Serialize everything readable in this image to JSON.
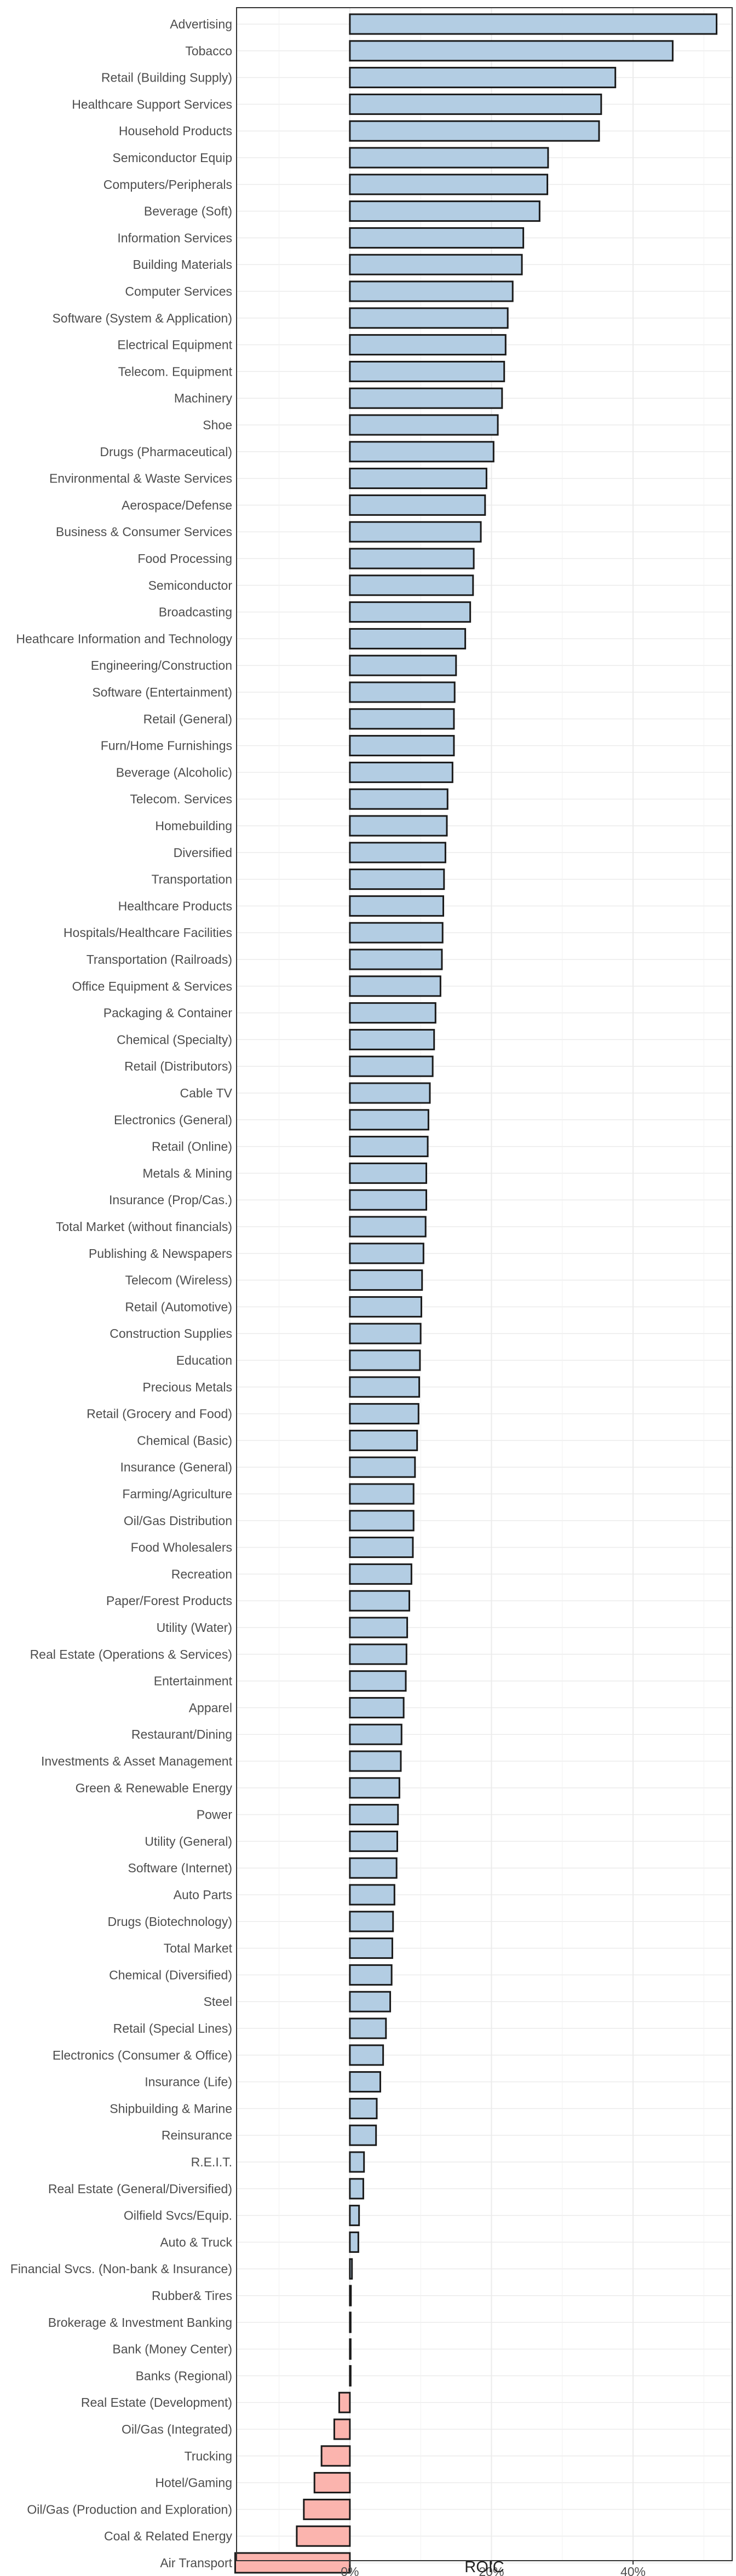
{
  "chart_data": {
    "type": "bar",
    "orientation": "horizontal",
    "xlabel": "ROIC",
    "ylabel": "",
    "xlim": [
      -0.16,
      0.54
    ],
    "x_ticks": [
      0,
      0.2,
      0.4
    ],
    "x_tick_labels": [
      "0%",
      "20%",
      "40%"
    ],
    "grid": true,
    "legend": "none",
    "colors": {
      "positive": "#b3cde3",
      "negative": "#fbb4ae",
      "outline": "#1a1a1a",
      "grid": "#ebebeb",
      "panel_border": "#333333"
    },
    "categories": [
      "Advertising",
      "Tobacco",
      "Retail (Building Supply)",
      "Healthcare Support Services",
      "Household Products",
      "Semiconductor Equip",
      "Computers/Peripherals",
      "Beverage (Soft)",
      "Information Services",
      "Building Materials",
      "Computer Services",
      "Software (System & Application)",
      "Electrical Equipment",
      "Telecom. Equipment",
      "Machinery",
      "Shoe",
      "Drugs (Pharmaceutical)",
      "Environmental & Waste Services",
      "Aerospace/Defense",
      "Business & Consumer Services",
      "Food Processing",
      "Semiconductor",
      "Broadcasting",
      "Heathcare Information and Technology",
      "Engineering/Construction",
      "Software (Entertainment)",
      "Retail (General)",
      "Furn/Home Furnishings",
      "Beverage (Alcoholic)",
      "Telecom. Services",
      "Homebuilding",
      "Diversified",
      "Transportation",
      "Healthcare Products",
      "Hospitals/Healthcare Facilities",
      "Transportation (Railroads)",
      "Office Equipment & Services",
      "Packaging & Container",
      "Chemical (Specialty)",
      "Retail (Distributors)",
      "Cable TV",
      "Electronics (General)",
      "Retail (Online)",
      "Metals & Mining",
      "Insurance (Prop/Cas.)",
      "Total Market (without financials)",
      "Publishing & Newspapers",
      "Telecom (Wireless)",
      "Retail (Automotive)",
      "Construction Supplies",
      "Education",
      "Precious Metals",
      "Retail (Grocery and Food)",
      "Chemical (Basic)",
      "Insurance (General)",
      "Farming/Agriculture",
      "Oil/Gas Distribution",
      "Food Wholesalers",
      "Recreation",
      "Paper/Forest Products",
      "Utility (Water)",
      "Real Estate (Operations & Services)",
      "Entertainment",
      "Apparel",
      "Restaurant/Dining",
      "Investments & Asset Management",
      "Green & Renewable Energy",
      "Power",
      "Utility (General)",
      "Software (Internet)",
      "Auto Parts",
      "Drugs (Biotechnology)",
      "Total Market",
      "Chemical (Diversified)",
      "Steel",
      "Retail (Special Lines)",
      "Electronics (Consumer & Office)",
      "Insurance (Life)",
      "Shipbuilding & Marine",
      "Reinsurance",
      "R.E.I.T.",
      "Real Estate (General/Diversified)",
      "Oilfield Svcs/Equip.",
      "Auto & Truck",
      "Financial Svcs. (Non-bank & Insurance)",
      "Rubber& Tires",
      "Brokerage & Investment Banking",
      "Bank (Money Center)",
      "Banks (Regional)",
      "Real Estate (Development)",
      "Oil/Gas (Integrated)",
      "Trucking",
      "Hotel/Gaming",
      "Oil/Gas (Production and Exploration)",
      "Coal & Related Energy",
      "Air Transport"
    ],
    "values": [
      0.518,
      0.456,
      0.375,
      0.355,
      0.352,
      0.28,
      0.279,
      0.268,
      0.245,
      0.243,
      0.23,
      0.223,
      0.22,
      0.218,
      0.215,
      0.209,
      0.203,
      0.193,
      0.191,
      0.185,
      0.175,
      0.174,
      0.17,
      0.163,
      0.15,
      0.148,
      0.147,
      0.147,
      0.145,
      0.138,
      0.137,
      0.135,
      0.133,
      0.132,
      0.131,
      0.13,
      0.128,
      0.121,
      0.119,
      0.117,
      0.113,
      0.111,
      0.11,
      0.108,
      0.108,
      0.107,
      0.104,
      0.102,
      0.101,
      0.1,
      0.099,
      0.098,
      0.097,
      0.095,
      0.092,
      0.09,
      0.09,
      0.089,
      0.087,
      0.084,
      0.081,
      0.08,
      0.079,
      0.076,
      0.073,
      0.072,
      0.07,
      0.068,
      0.067,
      0.066,
      0.063,
      0.061,
      0.06,
      0.059,
      0.057,
      0.051,
      0.047,
      0.043,
      0.038,
      0.037,
      0.02,
      0.019,
      0.013,
      0.012,
      0.003,
      0.0015,
      0.001,
      0.001,
      0.001,
      -0.015,
      -0.022,
      -0.04,
      -0.05,
      -0.065,
      -0.075,
      -0.162
    ]
  }
}
